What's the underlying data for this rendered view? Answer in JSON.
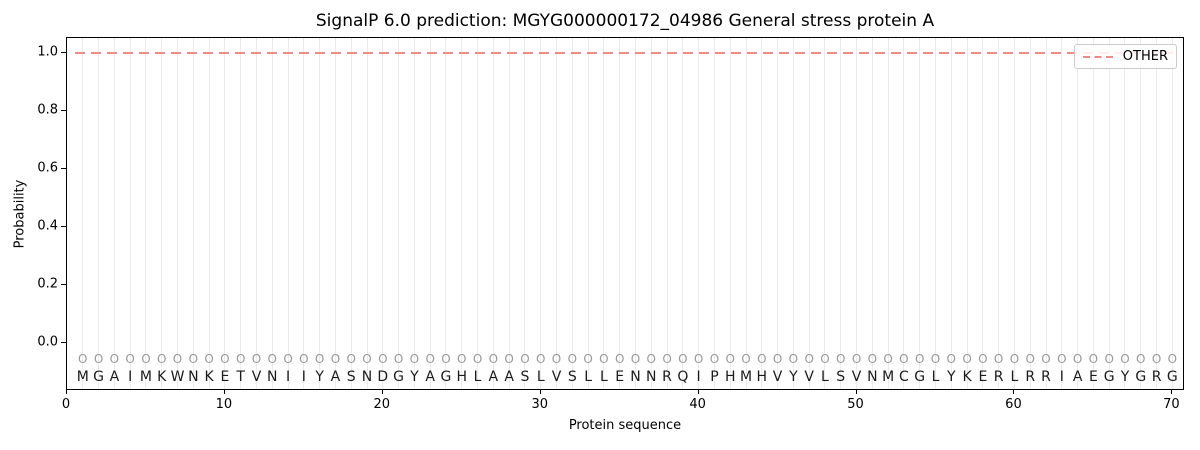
{
  "chart_data": {
    "type": "line",
    "title": "SignalP 6.0 prediction: MGYG000000172_04986 General stress protein A",
    "xlabel": "Protein sequence",
    "ylabel": "Probability",
    "xlim": [
      0,
      70.8
    ],
    "ylim": [
      -0.165,
      1.05
    ],
    "x_ticks": [
      "0",
      "10",
      "20",
      "30",
      "40",
      "50",
      "60",
      "70"
    ],
    "x_tick_values": [
      0,
      10,
      20,
      30,
      40,
      50,
      60,
      70
    ],
    "y_ticks": [
      "0.0",
      "0.2",
      "0.4",
      "0.6",
      "0.8",
      "1.0"
    ],
    "y_tick_values": [
      0.0,
      0.2,
      0.4,
      0.6,
      0.8,
      1.0
    ],
    "grid": "light vertical gridline at each residue position 1-70",
    "legend": {
      "position": "upper-right",
      "entries": [
        {
          "label": "OTHER",
          "color": "#f08a8a",
          "line_style": "dashed"
        }
      ]
    },
    "series": [
      {
        "name": "OTHER",
        "color": "#f08a8a",
        "line_style": "dashed",
        "constant_y": 1.0,
        "x_start": 1,
        "x_end": 70
      }
    ],
    "sequence": {
      "residues": "MGAIMKWNKETVNIIYASNDGYAGHLAASLVSLLENNRQIPHMHVYVLSVNMCGLYKERLRRIAEGYGRG",
      "length": 70,
      "class_marker": "O"
    }
  },
  "colors": {
    "other_line": "#f08a8a",
    "grid": "#ebebeb",
    "marker": "#999999",
    "residue_text": "#1a1a1a",
    "axis": "#000000",
    "background": "#ffffff"
  }
}
